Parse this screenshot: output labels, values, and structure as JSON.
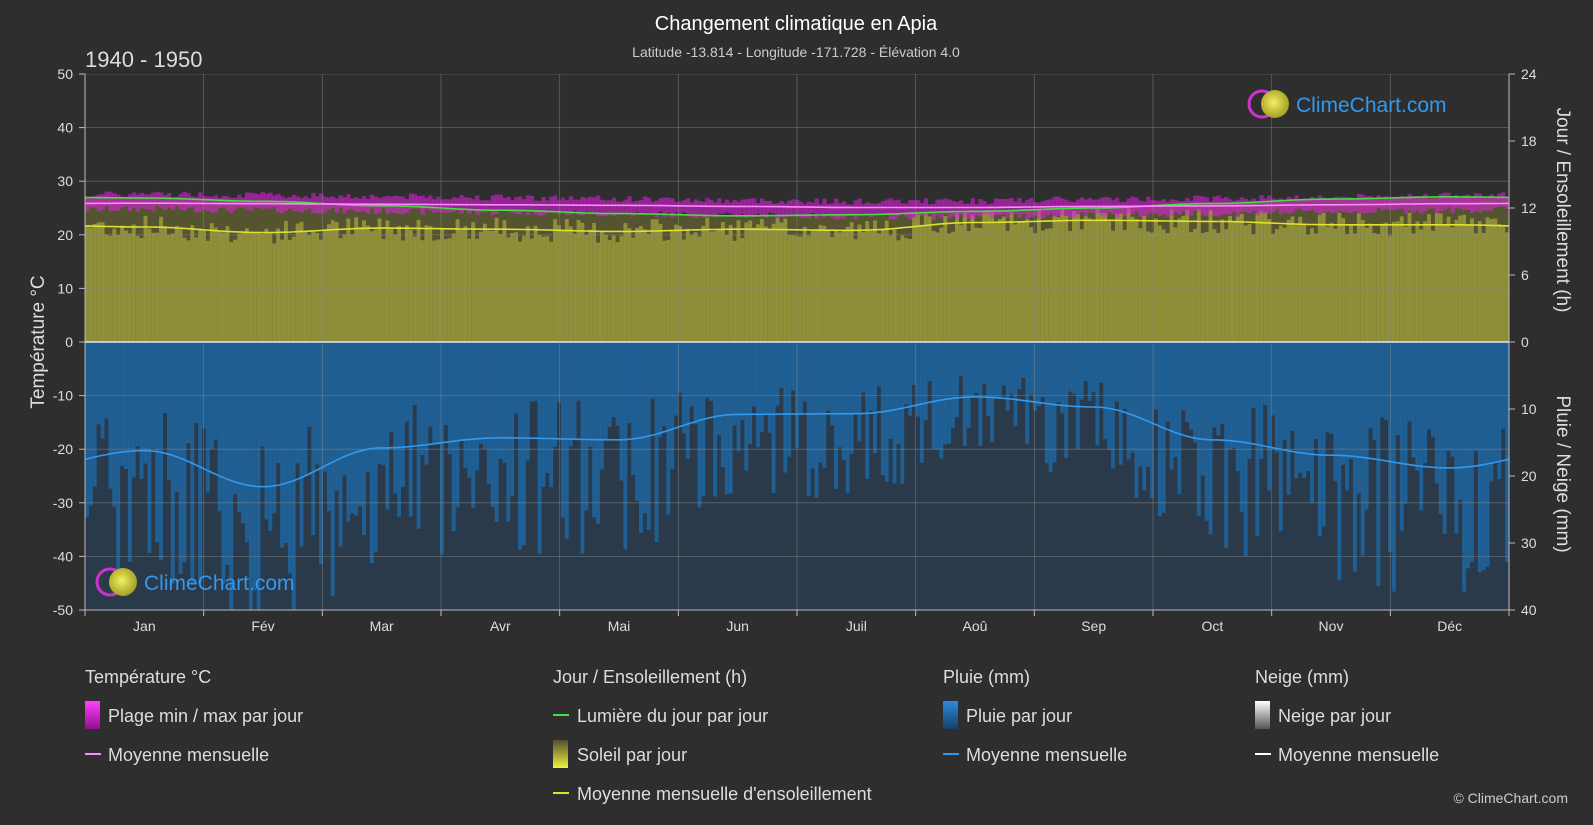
{
  "header": {
    "title": "Changement climatique en Apia",
    "subtitle": "Latitude -13.814 - Longitude -171.728 - Élévation 4.0",
    "period": "1940 - 1950"
  },
  "branding": {
    "logo_text": "ClimeChart.com",
    "copyright": "© ClimeChart.com"
  },
  "colors": {
    "background": "#2e2e2e",
    "temp_range": "#e020e0",
    "temp_mean": "#ff88ff",
    "daylight": "#44dd44",
    "sunshine_fill": "#8f8f3a",
    "sunshine_mean": "#e0e030",
    "rain_fill": "#1f5f94",
    "rain_mean": "#3399ee",
    "snow_mean": "#ffffff",
    "logo_blue": "#3399ee"
  },
  "chart_data": {
    "type": "area",
    "months": [
      "Jan",
      "Fév",
      "Mar",
      "Avr",
      "Mai",
      "Jun",
      "Juil",
      "Aoû",
      "Sep",
      "Oct",
      "Nov",
      "Déc"
    ],
    "axes": {
      "left": {
        "label": "Température °C",
        "min": -50,
        "max": 50,
        "ticks": [
          50,
          40,
          30,
          20,
          10,
          0,
          -10,
          -20,
          -30,
          -40,
          -50
        ]
      },
      "right_top": {
        "label": "Jour / Ensoleillement (h)",
        "min": 0,
        "max": 24,
        "ticks": [
          24,
          18,
          12,
          6,
          0
        ]
      },
      "right_bottom": {
        "label": "Pluie / Neige (mm)",
        "min": 0,
        "max": 40,
        "ticks": [
          0,
          10,
          20,
          30,
          40
        ]
      }
    },
    "grid": true,
    "series": {
      "temp_max_daily_avg": [
        27.6,
        27.4,
        27.2,
        27.0,
        26.7,
        26.4,
        26.2,
        26.3,
        26.6,
        26.8,
        27.0,
        27.3
      ],
      "temp_min_daily_avg": [
        24.8,
        24.6,
        24.4,
        24.2,
        23.9,
        23.6,
        23.4,
        23.4,
        23.7,
        24.0,
        24.3,
        24.6
      ],
      "temp_mean_monthly": [
        25.9,
        25.8,
        25.7,
        25.6,
        25.5,
        25.3,
        25.1,
        25.1,
        25.3,
        25.4,
        25.6,
        25.8
      ],
      "daylight_hours": [
        12.9,
        12.6,
        12.2,
        11.8,
        11.5,
        11.3,
        11.4,
        11.7,
        12.0,
        12.4,
        12.8,
        13.0
      ],
      "sunshine_hours": [
        10.3,
        9.8,
        10.2,
        10.1,
        9.9,
        10.1,
        10.0,
        10.7,
        10.9,
        10.8,
        10.5,
        10.5
      ],
      "rain_mean_mm": [
        16.2,
        21.6,
        15.8,
        14.3,
        14.6,
        10.8,
        10.7,
        8.2,
        9.7,
        14.6,
        16.9,
        18.8
      ],
      "snow_mean_mm": [
        0,
        0,
        0,
        0,
        0,
        0,
        0,
        0,
        0,
        0,
        0,
        0
      ]
    }
  },
  "legend": {
    "groups": [
      {
        "title": "Température °C",
        "items": [
          {
            "swatch": "box-magenta",
            "label": "Plage min / max par jour"
          },
          {
            "swatch": "line-pink",
            "label": "Moyenne mensuelle"
          }
        ]
      },
      {
        "title": "Jour / Ensoleillement (h)",
        "items": [
          {
            "swatch": "line-green",
            "label": "Lumière du jour par jour"
          },
          {
            "swatch": "box-yellow",
            "label": "Soleil par jour"
          },
          {
            "swatch": "line-yellow",
            "label": "Moyenne mensuelle d'ensoleillement"
          }
        ]
      },
      {
        "title": "Pluie (mm)",
        "items": [
          {
            "swatch": "box-blue",
            "label": "Pluie par jour"
          },
          {
            "swatch": "line-blue",
            "label": "Moyenne mensuelle"
          }
        ]
      },
      {
        "title": "Neige (mm)",
        "items": [
          {
            "swatch": "box-white",
            "label": "Neige par jour"
          },
          {
            "swatch": "line-white",
            "label": "Moyenne mensuelle"
          }
        ]
      }
    ]
  }
}
